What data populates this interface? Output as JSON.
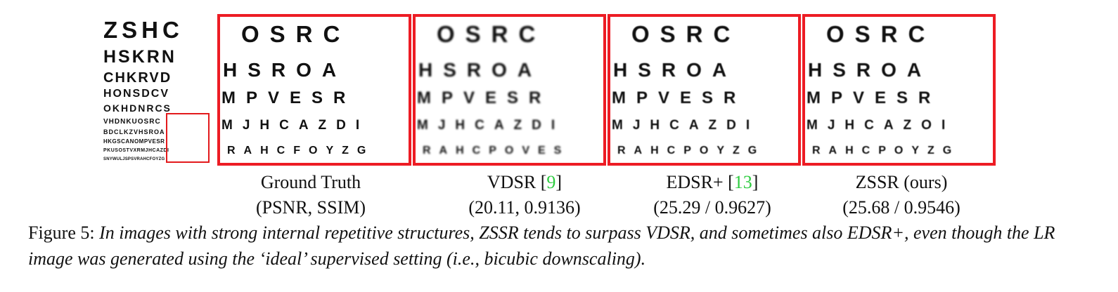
{
  "eye_chart": {
    "rows": [
      "ZSHC",
      "HSKRN",
      "CHKRVD",
      "HONSDCV",
      "OKHDNRCS",
      "VHDNKUOSRC",
      "BDCLKZVHSROA",
      "HKGSCANOMPVESR",
      "PKUSOSTVXRMJHCAZDI",
      "SNYWULJSPSVRAHCFOYZG"
    ]
  },
  "panels": [
    {
      "rows": [
        "OSRC",
        "HSROA",
        "MPVESR",
        "MJHCAZDI",
        "RAHCFOYZG"
      ]
    },
    {
      "rows": [
        "OSRC",
        "HSROA",
        "MPVESR",
        "MJHCAZDI",
        "RAHCPOVES"
      ]
    },
    {
      "rows": [
        "OSRC",
        "HSROA",
        "MPVESR",
        "MJHCAZDI",
        "RAHCPOYZG"
      ]
    },
    {
      "rows": [
        "OSRC",
        "HSROA",
        "MPVESR",
        "MJHCAZOI",
        "RAHCPOYZG"
      ]
    }
  ],
  "labels": [
    {
      "name": "Ground Truth",
      "metric": "(PSNR, SSIM)"
    },
    {
      "name": "VDSR [",
      "ref": "9",
      "close": "]",
      "metric": "(20.11, 0.9136)"
    },
    {
      "name": "EDSR+ [",
      "ref": "13",
      "close": "]",
      "metric": "(25.29 / 0.9627)"
    },
    {
      "name": "ZSSR (ours)",
      "metric": "(25.68 / 0.9546)"
    }
  ],
  "caption": {
    "lead": "Figure 5: ",
    "text": "In images with strong internal repetitive structures, ZSSR tends to surpass VDSR, and sometimes also EDSR+, even though the LR image was generated using the ‘ideal’ supervised setting (i.e., bicubic downscaling)."
  },
  "colors": {
    "box": "#ed1c24",
    "ref_link": "#2ecc40"
  }
}
